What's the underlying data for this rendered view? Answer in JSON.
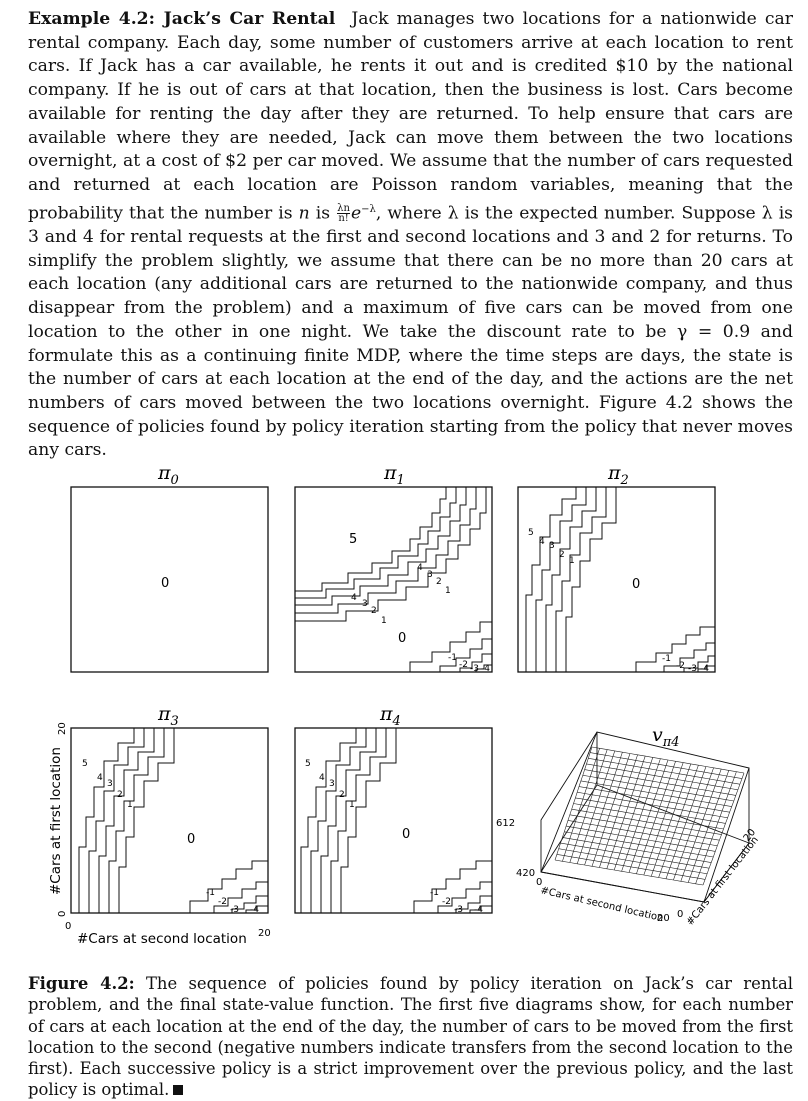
{
  "example": {
    "heading": "Example 4.2: Jack’s Car Rental",
    "s1": "Jack manages two locations for a nationwide car rental company. Each day, some number of customers arrive at each location to rent cars. If Jack has a car available, he rents it out and is credited $10 by the national company. If he is out of cars at that location, then the business is lost. Cars become available for renting the day after they are returned. To help ensure that cars are available where they are needed, Jack can move them between the two locations overnight, at a cost of $2 per car moved. We assume that the number of cars requested and returned at each location are Poisson random variables, meaning that the probability that the number is",
    "n_var": "n",
    "is_word": "is",
    "frac_num": "λn",
    "frac_den": "n!",
    "exp_base": "e",
    "exp_pow": "−λ",
    "s2": ", where λ is the expected number. Suppose λ is 3 and 4 for rental requests at the first and second locations and 3 and 2 for returns. To simplify the problem slightly, we assume that there can be no more than 20 cars at each location (any additional cars are returned to the nationwide company, and thus disappear from the problem) and a maximum of five cars can be moved from one location to the other in one night. We take the discount rate to be γ = 0.9 and formulate this as a continuing finite MDP, where the time steps are days, the state is the number of cars at each location at the end of the day, and the actions are the net numbers of cars moved between the two locations overnight. Figure 4.2 shows the sequence of policies found by policy iteration starting from the policy that never moves any cars."
  },
  "figure": {
    "panels": [
      {
        "title": "π",
        "sub": "0",
        "labels": [
          "0"
        ]
      },
      {
        "title": "π",
        "sub": "1",
        "labels": [
          "5",
          "4",
          "3",
          "2",
          "1",
          "0",
          "4",
          "3",
          "2",
          "1",
          "-1",
          "-2",
          "-3",
          "-4"
        ]
      },
      {
        "title": "π",
        "sub": "2",
        "labels": [
          "5",
          "4",
          "3",
          "2",
          "1",
          "0",
          "-1",
          "-2",
          "-3",
          "-4"
        ]
      },
      {
        "title": "π",
        "sub": "3",
        "labels": [
          "5",
          "4",
          "3",
          "2",
          "1",
          "0",
          "-1",
          "-2",
          "-3",
          "-4"
        ]
      },
      {
        "title": "π",
        "sub": "4",
        "labels": [
          "5",
          "4",
          "3",
          "2",
          "1",
          "0",
          "-1",
          "-2",
          "-3",
          "-4"
        ]
      }
    ],
    "axes": {
      "ylabel": "#Cars at first location",
      "xlabel": "#Cars at second location",
      "y_top": "20",
      "y_bottom": "0",
      "x_left": "0",
      "x_right": "20"
    },
    "value_plot": {
      "title": "v",
      "sub": "π4",
      "z_high": "612",
      "z_low": "420",
      "x_label": "#Cars at second location",
      "y_label": "#Cars at first location",
      "x0": "0",
      "x20": "20",
      "y0": "0",
      "y20": "20"
    }
  },
  "caption": {
    "label": "Figure 4.2:",
    "text": "The sequence of policies found by policy iteration on Jack’s car rental problem, and the final state-value function. The first five diagrams show, for each number of cars at each location at the end of the day, the number of cars to be moved from the first location to the second (negative numbers indicate transfers from the second location to the first). Each successive policy is a strict improvement over the previous policy, and the last policy is optimal."
  }
}
